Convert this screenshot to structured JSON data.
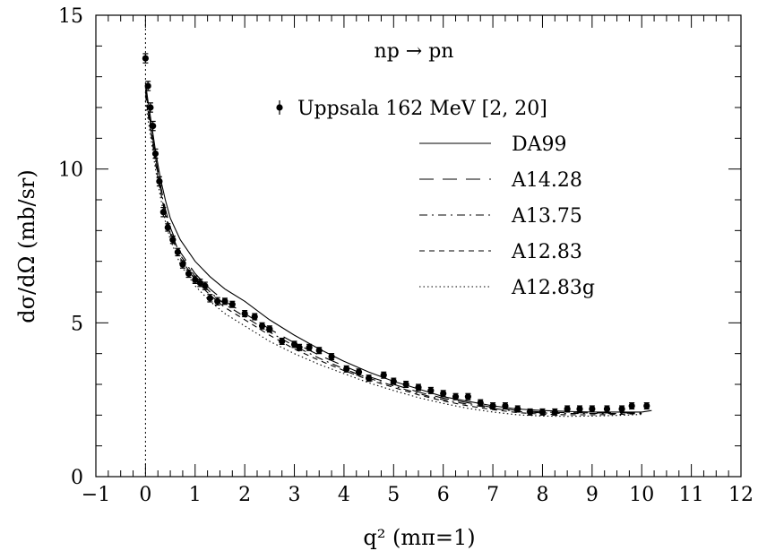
{
  "chart_data": {
    "type": "line",
    "title": "np → pn",
    "xlabel": "q² (mπ=1)",
    "ylabel": "dσ/dΩ (mb/sr)",
    "xlim": [
      -1,
      12
    ],
    "ylim": [
      0,
      15
    ],
    "x_ticks": [
      "−1",
      "0",
      "1",
      "2",
      "3",
      "4",
      "5",
      "6",
      "7",
      "8",
      "9",
      "10",
      "11",
      "12"
    ],
    "y_ticks": [
      "0",
      "5",
      "10",
      "15"
    ],
    "grid": false,
    "legend_position": "top-right",
    "reference_line_x": 0,
    "data_series": {
      "name": "Uppsala 162 MeV [2, 20]",
      "x": [
        0.0,
        0.05,
        0.1,
        0.15,
        0.2,
        0.28,
        0.36,
        0.45,
        0.55,
        0.65,
        0.75,
        0.87,
        1.0,
        1.1,
        1.2,
        1.3,
        1.45,
        1.6,
        1.75,
        2.0,
        2.2,
        2.35,
        2.5,
        2.75,
        3.0,
        3.1,
        3.3,
        3.5,
        3.75,
        4.05,
        4.3,
        4.5,
        4.8,
        5.0,
        5.25,
        5.5,
        5.75,
        6.0,
        6.25,
        6.5,
        6.75,
        7.0,
        7.25,
        7.5,
        7.75,
        8.0,
        8.25,
        8.5,
        8.75,
        9.0,
        9.3,
        9.6,
        9.8,
        10.1
      ],
      "y": [
        13.6,
        12.7,
        12.0,
        11.4,
        10.5,
        9.6,
        8.6,
        8.1,
        7.7,
        7.3,
        6.9,
        6.6,
        6.4,
        6.3,
        6.2,
        5.8,
        5.7,
        5.7,
        5.6,
        5.3,
        5.2,
        4.9,
        4.8,
        4.4,
        4.3,
        4.2,
        4.2,
        4.1,
        3.9,
        3.5,
        3.4,
        3.2,
        3.3,
        3.1,
        3.0,
        2.9,
        2.8,
        2.7,
        2.6,
        2.6,
        2.4,
        2.3,
        2.3,
        2.2,
        2.1,
        2.1,
        2.1,
        2.2,
        2.2,
        2.2,
        2.2,
        2.2,
        2.3,
        2.3
      ],
      "err": [
        0.15,
        0.15,
        0.15,
        0.15,
        0.15,
        0.15,
        0.15,
        0.12,
        0.12,
        0.12,
        0.12,
        0.12,
        0.12,
        0.12,
        0.12,
        0.12,
        0.12,
        0.1,
        0.1,
        0.1,
        0.1,
        0.1,
        0.1,
        0.1,
        0.1,
        0.1,
        0.1,
        0.1,
        0.1,
        0.1,
        0.1,
        0.1,
        0.1,
        0.1,
        0.1,
        0.1,
        0.1,
        0.1,
        0.1,
        0.1,
        0.1,
        0.1,
        0.1,
        0.1,
        0.1,
        0.1,
        0.1,
        0.1,
        0.1,
        0.1,
        0.1,
        0.1,
        0.1,
        0.1
      ]
    },
    "series": [
      {
        "name": "DA99",
        "dash": "solid",
        "x": [
          0.0,
          0.05,
          0.1,
          0.2,
          0.3,
          0.4,
          0.5,
          0.7,
          1.0,
          1.3,
          1.6,
          2.0,
          2.5,
          3.0,
          3.5,
          4.0,
          4.5,
          5.0,
          5.5,
          6.0,
          6.5,
          7.0,
          7.5,
          8.0,
          8.5,
          9.0,
          9.5,
          10.0,
          10.2
        ],
        "y": [
          12.8,
          12.2,
          11.7,
          10.6,
          9.7,
          9.0,
          8.4,
          7.7,
          7.0,
          6.5,
          6.1,
          5.7,
          5.1,
          4.6,
          4.15,
          3.75,
          3.4,
          3.1,
          2.85,
          2.6,
          2.45,
          2.3,
          2.2,
          2.15,
          2.12,
          2.1,
          2.1,
          2.1,
          2.15
        ]
      },
      {
        "name": "A14.28",
        "dash": "long-dash",
        "x": [
          0.0,
          0.05,
          0.1,
          0.2,
          0.3,
          0.4,
          0.5,
          0.7,
          1.0,
          1.3,
          1.6,
          2.0,
          2.5,
          3.0,
          3.5,
          4.0,
          4.5,
          5.0,
          5.5,
          6.0,
          6.5,
          7.0,
          7.5,
          8.0,
          8.5,
          9.0,
          9.5,
          10.0
        ],
        "y": [
          12.6,
          12.0,
          11.5,
          10.4,
          9.5,
          8.7,
          8.1,
          7.3,
          6.6,
          6.1,
          5.7,
          5.3,
          4.8,
          4.35,
          3.95,
          3.6,
          3.25,
          3.0,
          2.75,
          2.55,
          2.4,
          2.25,
          2.15,
          2.1,
          2.08,
          2.07,
          2.07,
          2.08
        ]
      },
      {
        "name": "A13.75",
        "dash": "dash-dot",
        "x": [
          0.0,
          0.05,
          0.1,
          0.2,
          0.3,
          0.4,
          0.5,
          0.7,
          1.0,
          1.3,
          1.6,
          2.0,
          2.5,
          3.0,
          3.5,
          4.0,
          4.5,
          5.0,
          5.5,
          6.0,
          6.5,
          7.0,
          7.5,
          8.0,
          8.5,
          9.0,
          9.5,
          10.0
        ],
        "y": [
          12.5,
          11.9,
          11.4,
          10.3,
          9.4,
          8.6,
          8.0,
          7.2,
          6.5,
          6.0,
          5.6,
          5.2,
          4.7,
          4.25,
          3.85,
          3.5,
          3.2,
          2.95,
          2.7,
          2.5,
          2.35,
          2.22,
          2.12,
          2.07,
          2.05,
          2.05,
          2.05,
          2.07
        ]
      },
      {
        "name": "A12.83",
        "dash": "short-dash",
        "x": [
          0.0,
          0.05,
          0.1,
          0.2,
          0.3,
          0.4,
          0.5,
          0.7,
          1.0,
          1.3,
          1.6,
          2.0,
          2.5,
          3.0,
          3.5,
          4.0,
          4.5,
          5.0,
          5.5,
          6.0,
          6.5,
          7.0,
          7.5,
          8.0,
          8.5,
          9.0,
          9.5,
          10.0
        ],
        "y": [
          12.4,
          11.8,
          11.3,
          10.2,
          9.3,
          8.5,
          7.9,
          7.1,
          6.4,
          5.9,
          5.5,
          5.1,
          4.6,
          4.15,
          3.78,
          3.45,
          3.15,
          2.9,
          2.66,
          2.46,
          2.3,
          2.18,
          2.08,
          2.03,
          2.01,
          2.01,
          2.02,
          2.05
        ]
      },
      {
        "name": "A12.83g",
        "dash": "dotted",
        "x": [
          0.0,
          0.05,
          0.1,
          0.2,
          0.3,
          0.4,
          0.5,
          0.7,
          1.0,
          1.3,
          1.6,
          2.0,
          2.5,
          3.0,
          3.5,
          4.0,
          4.5,
          5.0,
          5.5,
          6.0,
          6.5,
          7.0,
          7.5,
          8.0,
          8.5,
          9.0,
          9.5,
          10.0
        ],
        "y": [
          12.2,
          11.6,
          11.1,
          10.0,
          9.1,
          8.3,
          7.7,
          6.9,
          6.2,
          5.7,
          5.3,
          4.9,
          4.4,
          4.0,
          3.65,
          3.35,
          3.05,
          2.8,
          2.57,
          2.38,
          2.22,
          2.1,
          2.01,
          1.97,
          1.96,
          1.97,
          1.99,
          2.02
        ]
      }
    ]
  }
}
